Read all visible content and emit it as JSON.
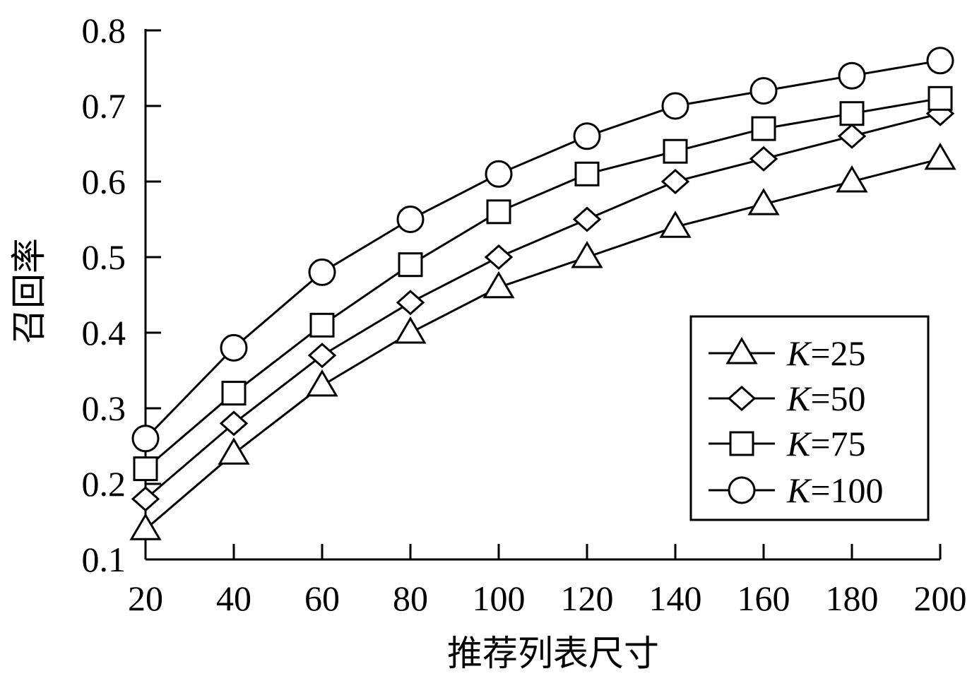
{
  "chart_data": {
    "type": "line",
    "title": "",
    "xlabel": "推荐列表尺寸",
    "ylabel": "召回率",
    "x": [
      20,
      40,
      60,
      80,
      100,
      120,
      140,
      160,
      180,
      200
    ],
    "xticks": [
      20,
      40,
      60,
      80,
      100,
      120,
      140,
      160,
      180,
      200
    ],
    "yticks": [
      "0.1",
      "0.2",
      "0.3",
      "0.4",
      "0.5",
      "0.6",
      "0.7",
      "0.8"
    ],
    "xlim": [
      20,
      200
    ],
    "ylim": [
      0.1,
      0.8
    ],
    "grid": false,
    "legend_position": "bottom-right",
    "series": [
      {
        "name": "K=25",
        "label_italic": "K",
        "label_rest": "=25",
        "marker": "triangle",
        "values": [
          0.14,
          0.24,
          0.33,
          0.4,
          0.46,
          0.5,
          0.54,
          0.57,
          0.6,
          0.63
        ]
      },
      {
        "name": "K=50",
        "label_italic": "K",
        "label_rest": "=50",
        "marker": "diamond",
        "values": [
          0.18,
          0.28,
          0.37,
          0.44,
          0.5,
          0.55,
          0.6,
          0.63,
          0.66,
          0.69
        ]
      },
      {
        "name": "K=75",
        "label_italic": "K",
        "label_rest": "=75",
        "marker": "square",
        "values": [
          0.22,
          0.32,
          0.41,
          0.49,
          0.56,
          0.61,
          0.64,
          0.67,
          0.69,
          0.71
        ]
      },
      {
        "name": "K=100",
        "label_italic": "K",
        "label_rest": "=100",
        "marker": "circle",
        "values": [
          0.26,
          0.38,
          0.48,
          0.55,
          0.61,
          0.66,
          0.7,
          0.72,
          0.74,
          0.76
        ]
      }
    ]
  }
}
